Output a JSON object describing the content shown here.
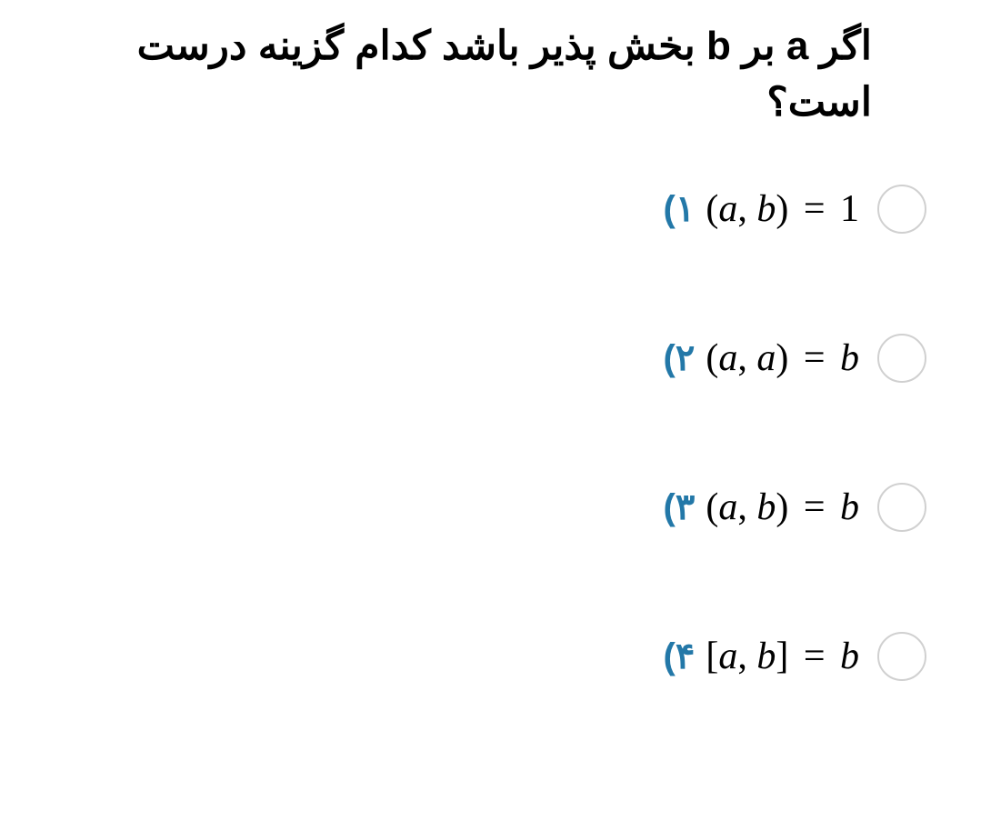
{
  "question": {
    "text": "اگر a بر b بخش پذیر باشد کدام گزینه درست است؟",
    "font_size": 44,
    "font_weight": 900,
    "color": "#000000",
    "align": "right"
  },
  "options": [
    {
      "number": "۱)",
      "math_display": "(a, b) = 1",
      "open_bracket": "(",
      "var1": "a",
      "comma": ", ",
      "var2": "b",
      "close_bracket": ")",
      "equals": " = ",
      "rhs": "1",
      "rhs_italic": false
    },
    {
      "number": "۲)",
      "math_display": "(a, a) = b",
      "open_bracket": "(",
      "var1": "a",
      "comma": ", ",
      "var2": "a",
      "close_bracket": ")",
      "equals": " = ",
      "rhs": "b",
      "rhs_italic": true
    },
    {
      "number": "۳)",
      "math_display": "(a, b) = b",
      "open_bracket": "(",
      "var1": "a",
      "comma": ", ",
      "var2": "b",
      "close_bracket": ")",
      "equals": " = ",
      "rhs": "b",
      "rhs_italic": true
    },
    {
      "number": "۴)",
      "math_display": "[a, b] = b",
      "open_bracket": "[",
      "var1": "a",
      "comma": ", ",
      "var2": "b",
      "close_bracket": "]",
      "equals": " = ",
      "rhs": "b",
      "rhs_italic": true
    }
  ],
  "styling": {
    "background_color": "#ffffff",
    "option_number_color": "#2378a8",
    "option_number_font_size": 40,
    "option_number_font_weight": 900,
    "math_font_size": 42,
    "math_color": "#000000",
    "math_font_family": "Times New Roman",
    "radio_size": 54,
    "radio_border_color": "#d0d0d0",
    "radio_border_width": 2,
    "option_gap": 110,
    "direction": "rtl"
  }
}
